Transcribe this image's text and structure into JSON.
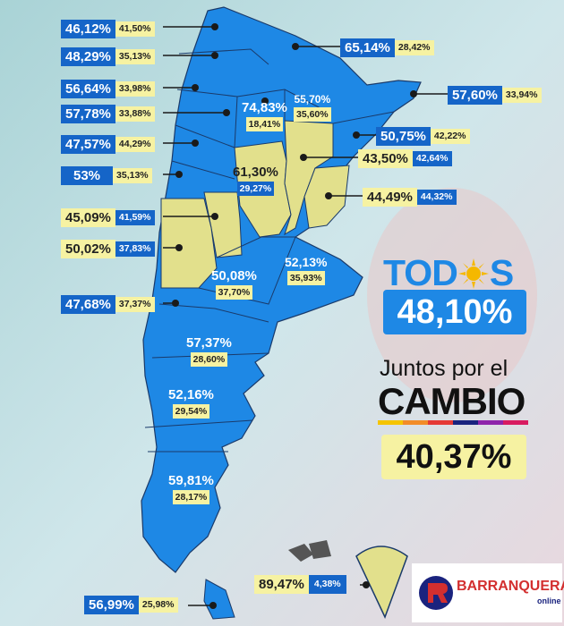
{
  "headline": {
    "todos_logo": "TOD S",
    "todos_pct": "48,10%",
    "jxc_line1": "Juntos por el",
    "jxc_line2": "CAMBIO",
    "jxc_pct": "40,37%"
  },
  "provinces": [
    {
      "id": "jujuy",
      "a": "46,12%",
      "b": "41,50%",
      "winner": "blue"
    },
    {
      "id": "salta",
      "a": "48,29%",
      "b": "35,13%",
      "winner": "blue"
    },
    {
      "id": "tucuman",
      "a": "56,64%",
      "b": "33,98%",
      "winner": "blue"
    },
    {
      "id": "catamarca",
      "a": "57,78%",
      "b": "33,88%",
      "winner": "blue"
    },
    {
      "id": "la-rioja",
      "a": "47,57%",
      "b": "44,29%",
      "winner": "blue"
    },
    {
      "id": "san-juan",
      "a": "53%",
      "b": "35,13%",
      "winner": "blue"
    },
    {
      "id": "san-luis",
      "a": "45,09%",
      "b": "41,59%",
      "winner": "yellow"
    },
    {
      "id": "mendoza",
      "a": "50,02%",
      "b": "37,83%",
      "winner": "yellow"
    },
    {
      "id": "neuquen",
      "a": "47,68%",
      "b": "37,37%",
      "winner": "blue"
    },
    {
      "id": "formosa",
      "a": "65,14%",
      "b": "28,42%",
      "winner": "blue"
    },
    {
      "id": "misiones",
      "a": "57,60%",
      "b": "33,94%",
      "winner": "blue"
    },
    {
      "id": "corrientes",
      "a": "50,75%",
      "b": "42,22%",
      "winner": "blue"
    },
    {
      "id": "santa-fe",
      "a": "43,50%",
      "b": "42,64%",
      "winner": "yellow"
    },
    {
      "id": "entre-rios",
      "a": "44,49%",
      "b": "44,32%",
      "winner": "yellow"
    },
    {
      "id": "santiago",
      "a": "74,83%",
      "b": "18,41%",
      "winner": "blue"
    },
    {
      "id": "chaco",
      "a": "55,70%",
      "b": "35,60%",
      "winner": "blue"
    },
    {
      "id": "cordoba",
      "a": "61,30%",
      "b": "29,27%",
      "winner": "yellow"
    },
    {
      "id": "la-pampa",
      "a": "50,08%",
      "b": "37,70%",
      "winner": "blue"
    },
    {
      "id": "buenos-aires",
      "a": "52,13%",
      "b": "35,93%",
      "winner": "blue"
    },
    {
      "id": "rio-negro",
      "a": "57,37%",
      "b": "28,60%",
      "winner": "blue"
    },
    {
      "id": "chubut",
      "a": "52,16%",
      "b": "29,54%",
      "winner": "blue"
    },
    {
      "id": "santa-cruz",
      "a": "59,81%",
      "b": "28,17%",
      "winner": "blue"
    },
    {
      "id": "tierra-del-fuego",
      "a": "56,99%",
      "b": "25,98%",
      "winner": "blue"
    },
    {
      "id": "antartida",
      "a": "89,47%",
      "b": "4,38%",
      "winner": "yellow"
    }
  ],
  "logo": {
    "brand": "BARRANQUERAS",
    "sub": "online"
  },
  "colors": {
    "todos": "#1565c8",
    "jxc": "#f6f2a2",
    "map_blue": "#1e88e5",
    "map_yellow": "#e2e08c"
  }
}
